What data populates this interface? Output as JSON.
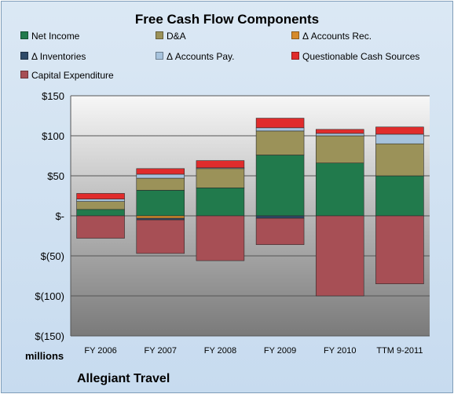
{
  "chart_data": {
    "type": "bar",
    "stacked": true,
    "title": "Free Cash Flow Components",
    "unit_label": "millions",
    "company": "Allegiant Travel",
    "categories": [
      "FY 2006",
      "FY 2007",
      "FY 2008",
      "FY 2009",
      "FY 2010",
      "TTM 9-2011"
    ],
    "y_ticks": [
      150,
      100,
      50,
      0,
      -50,
      -100,
      -150
    ],
    "y_tick_labels": [
      "$150",
      "$100",
      "$50",
      "$-",
      "$(50)",
      "$(100)",
      "$(150)"
    ],
    "ylim": [
      -150,
      150
    ],
    "grid": true,
    "legend_position": "top",
    "series": [
      {
        "name": "Net Income",
        "color": "#217a4c",
        "values": [
          8,
          32,
          35,
          76,
          66,
          50
        ]
      },
      {
        "name": "D&A",
        "color": "#9b9259",
        "values": [
          10,
          15,
          24,
          30,
          34,
          40
        ]
      },
      {
        "name": "Δ Accounts Rec.",
        "color": "#d58a2b",
        "values": [
          0,
          -3,
          0,
          0,
          0,
          0
        ]
      },
      {
        "name": "Δ Inventories",
        "color": "#2e4a68",
        "values": [
          0,
          -2,
          0,
          -3,
          0,
          0
        ]
      },
      {
        "name": "Δ Accounts Pay.",
        "color": "#a7c3dd",
        "values": [
          3,
          5,
          1,
          4,
          3,
          12
        ]
      },
      {
        "name": "Questionable Cash Sources",
        "color": "#e02c2c",
        "values": [
          7,
          7,
          9,
          12,
          5,
          9
        ]
      },
      {
        "name": "Capital Expenditure",
        "color": "#a74f55",
        "values": [
          -28,
          -42,
          -56,
          -33,
          -100,
          -85
        ]
      }
    ]
  }
}
